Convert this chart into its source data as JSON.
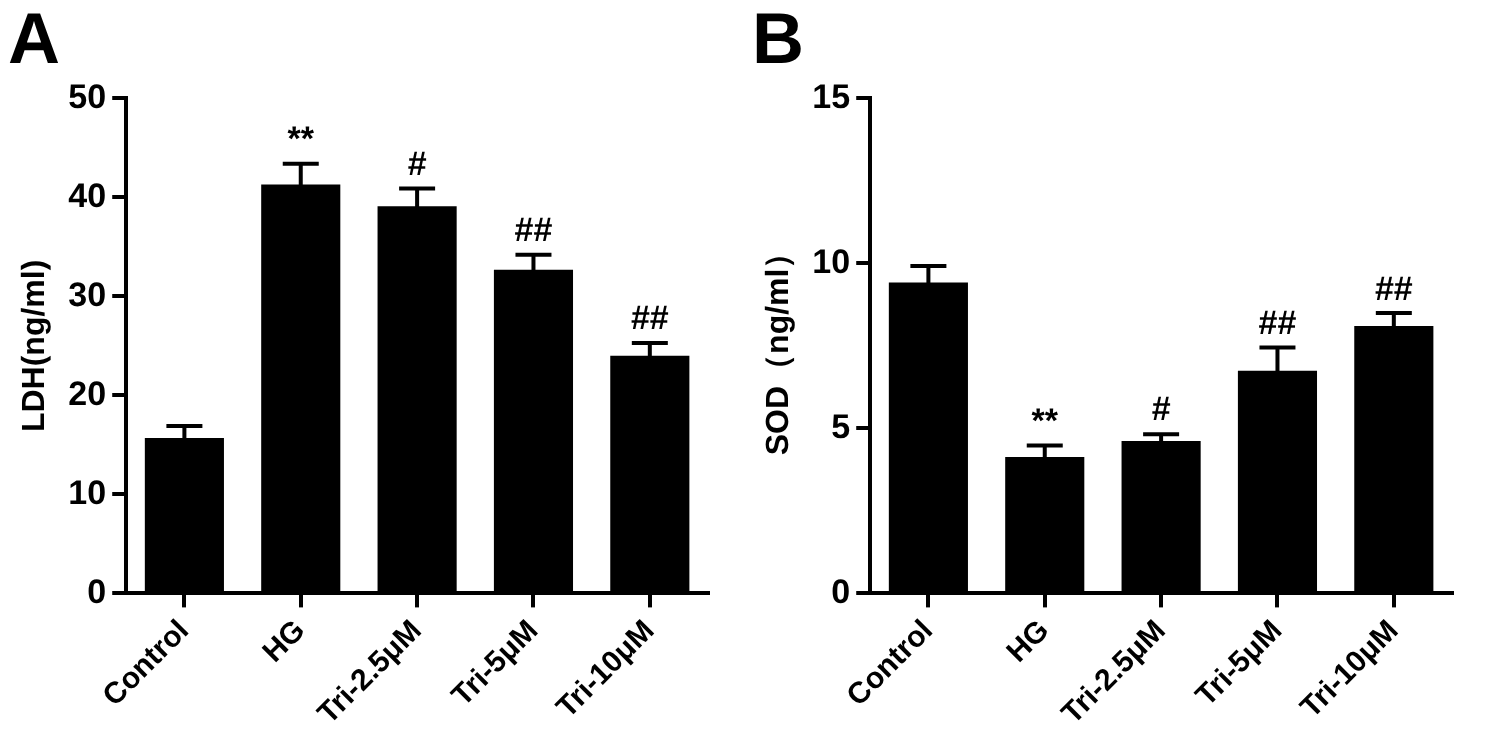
{
  "chart_data": [
    {
      "type": "bar",
      "title": "A",
      "ylabel": "LDH(ng/ml)",
      "categories": [
        "Control",
        "HG",
        "Tri-2.5μM",
        "Tri-5μM",
        "Tri-10μM"
      ],
      "values": [
        15.7,
        41.3,
        39.1,
        32.7,
        24.0
      ],
      "errors": [
        1.2,
        2.1,
        1.8,
        1.5,
        1.3
      ],
      "color": "#000000",
      "ylim": [
        0,
        50
      ],
      "yticks": [
        0,
        10,
        20,
        30,
        40,
        50
      ],
      "grid": false,
      "legend": false,
      "annotations": [
        {
          "text": "**",
          "x": "HG",
          "y": 43.4
        },
        {
          "text": "#",
          "x": "Tri-2.5μM",
          "y": 40.9
        },
        {
          "text": "##",
          "x": "Tri-5μM",
          "y": 34.2
        },
        {
          "text": "##",
          "x": "Tri-10μM",
          "y": 25.3
        }
      ]
    },
    {
      "type": "bar",
      "title": "B",
      "ylabel": "SOD（ng/ml）",
      "categories": [
        "Control",
        "HG",
        "Tri-2.5μM",
        "Tri-5μM",
        "Tri-10μM"
      ],
      "values": [
        9.42,
        4.13,
        4.62,
        6.75,
        8.1
      ],
      "errors": [
        0.5,
        0.35,
        0.2,
        0.7,
        0.4
      ],
      "color": "#000000",
      "ylim": [
        0,
        15
      ],
      "yticks": [
        0,
        5,
        10,
        15
      ],
      "grid": false,
      "legend": false,
      "annotations": [
        {
          "text": "**",
          "x": "HG",
          "y": 4.47
        },
        {
          "text": "#",
          "x": "Tri-2.5μM",
          "y": 4.84
        },
        {
          "text": "##",
          "x": "Tri-5μM",
          "y": 7.46
        },
        {
          "text": "##",
          "x": "Tri-10μM",
          "y": 8.48
        }
      ]
    }
  ]
}
